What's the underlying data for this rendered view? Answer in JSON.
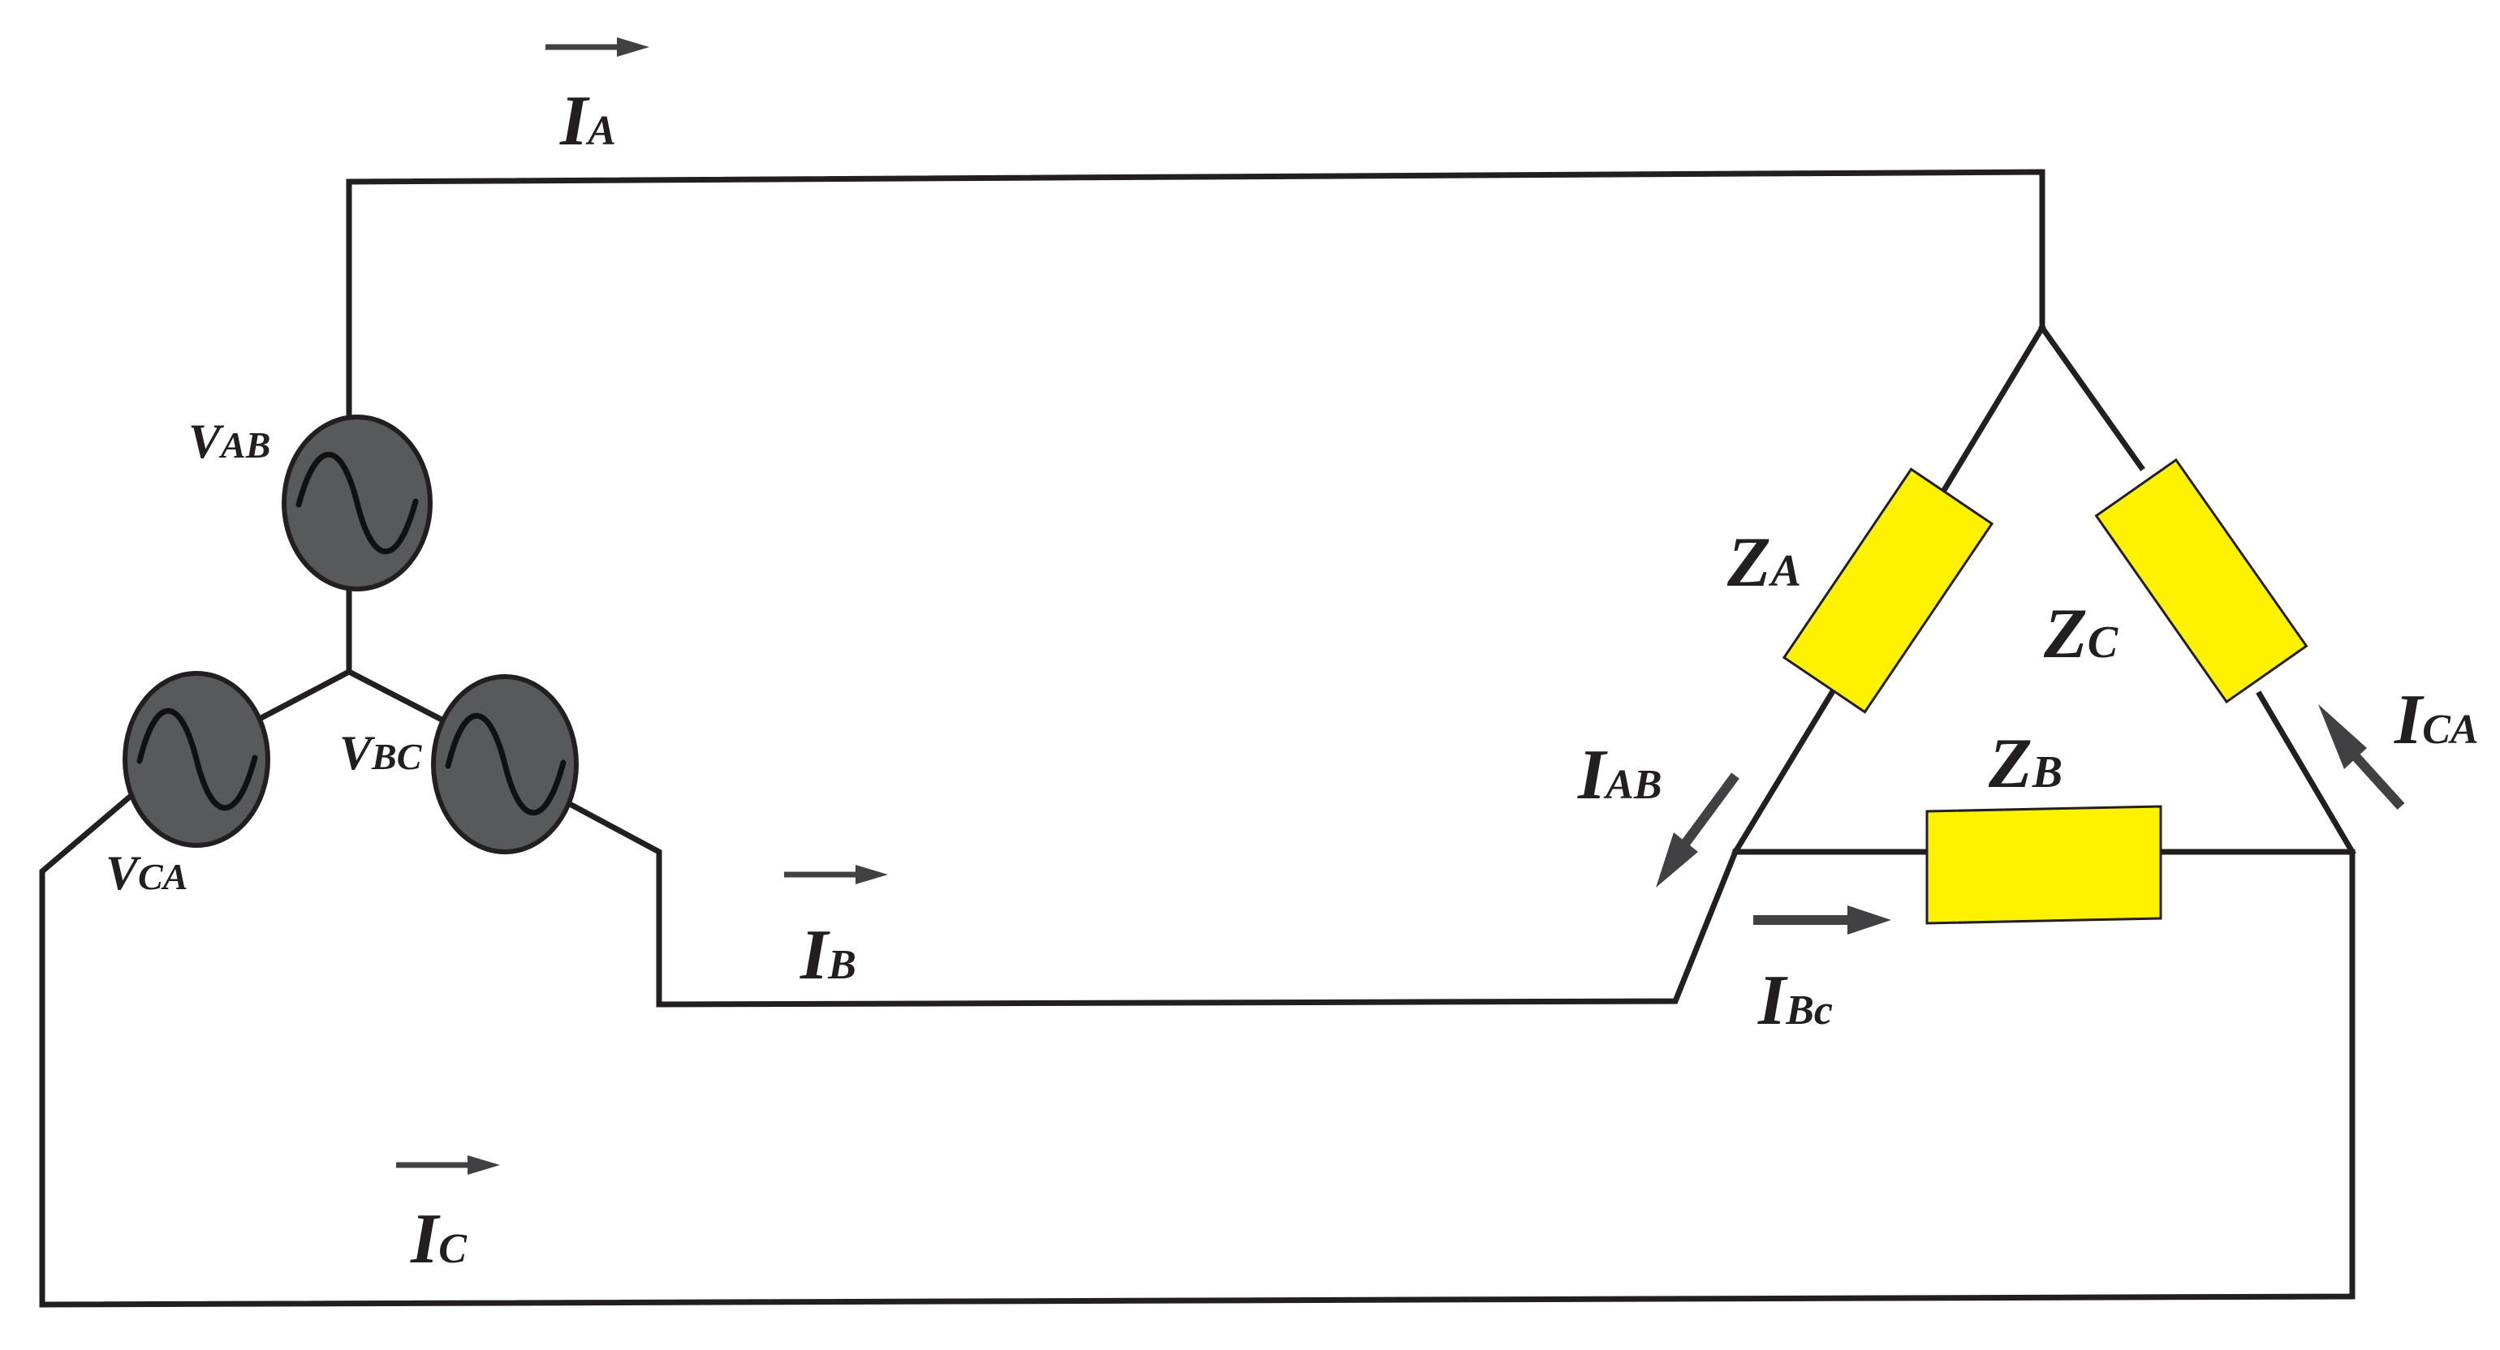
{
  "labels": {
    "I_A": {
      "main": "I",
      "sub": "A"
    },
    "I_B": {
      "main": "I",
      "sub": "B"
    },
    "I_C": {
      "main": "I",
      "sub": "C"
    },
    "V_AB": {
      "main": "V",
      "sub": "AB"
    },
    "V_BC": {
      "main": "V",
      "sub": "BC"
    },
    "V_CA": {
      "main": "V",
      "sub": "CA"
    },
    "Z_A": {
      "main": "Z",
      "sub": "A"
    },
    "Z_B": {
      "main": "Z",
      "sub": "B"
    },
    "Z_C": {
      "main": "Z",
      "sub": "C"
    },
    "I_AB": {
      "main": "I",
      "sub": "AB"
    },
    "I_Bc": {
      "main": "I",
      "sub": "Bc"
    },
    "I_CA": {
      "main": "I",
      "sub": "CA"
    }
  },
  "colors": {
    "wire": "#231f20",
    "source_fill": "#58595b",
    "impedance_fill": "#fff200",
    "arrow": "#414042",
    "background": "#ffffff"
  },
  "icons": {
    "source": "ac-voltage-source-icon",
    "impedance": "impedance-box-icon",
    "arrow": "current-direction-arrow-icon"
  }
}
